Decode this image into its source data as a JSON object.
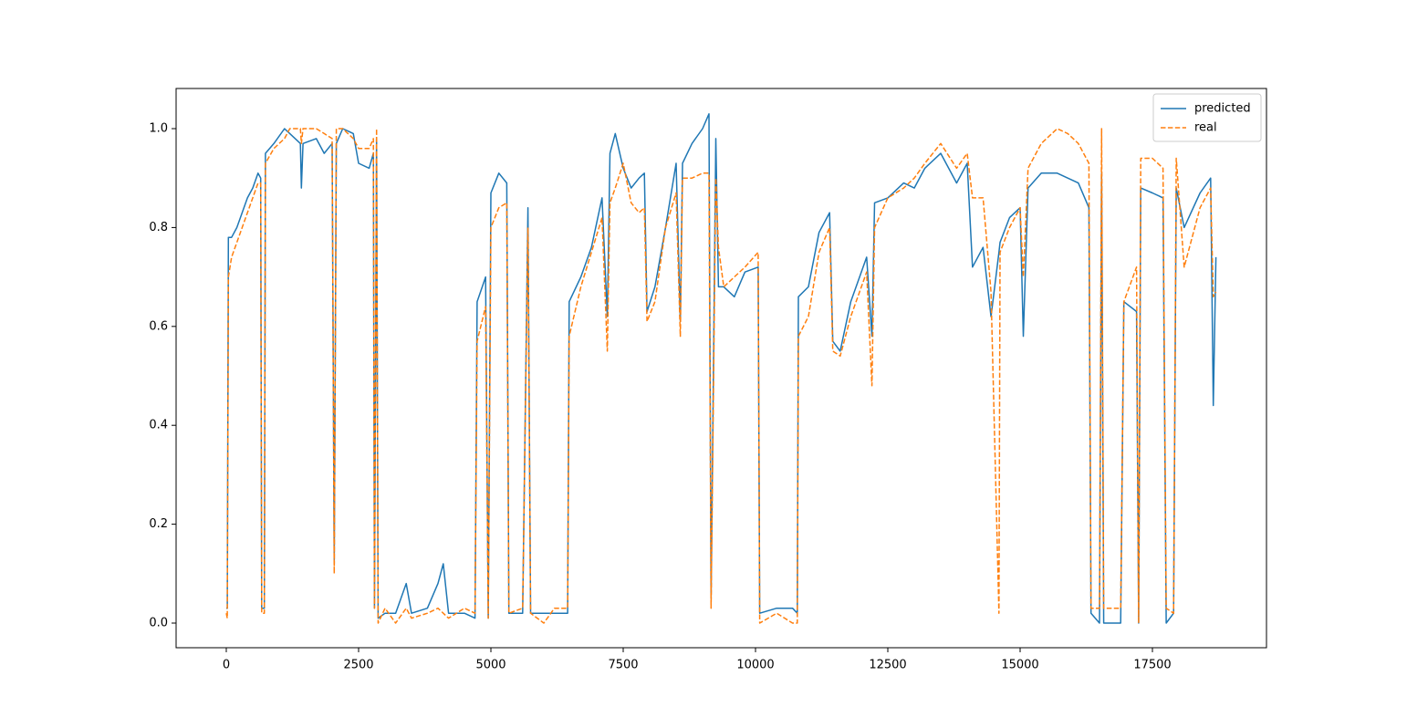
{
  "chart_data": {
    "type": "line",
    "x": [
      0,
      20,
      40,
      100,
      200,
      300,
      400,
      500,
      600,
      650,
      670,
      720,
      740,
      900,
      1100,
      1200,
      1400,
      1420,
      1450,
      1700,
      1850,
      2000,
      2040,
      2080,
      2200,
      2400,
      2500,
      2700,
      2780,
      2800,
      2840,
      2870,
      3000,
      3200,
      3400,
      3500,
      3800,
      4000,
      4100,
      4200,
      4500,
      4700,
      4740,
      4900,
      4950,
      5000,
      5150,
      5300,
      5340,
      5600,
      5700,
      5750,
      6000,
      6200,
      6450,
      6480,
      6700,
      6900,
      7100,
      7200,
      7250,
      7350,
      7500,
      7650,
      7800,
      7900,
      7950,
      8100,
      8300,
      8500,
      8580,
      8620,
      8800,
      9000,
      9120,
      9160,
      9250,
      9300,
      9400,
      9600,
      9800,
      10050,
      10080,
      10400,
      10700,
      10790,
      10810,
      11000,
      11200,
      11400,
      11460,
      11600,
      11800,
      12100,
      12200,
      12250,
      12500,
      12800,
      13000,
      13200,
      13500,
      13800,
      14000,
      14100,
      14300,
      14450,
      14600,
      14620,
      14800,
      15000,
      15060,
      15150,
      15400,
      15700,
      15900,
      16100,
      16300,
      16340,
      16500,
      16540,
      16580,
      16900,
      16960,
      17200,
      17240,
      17280,
      17500,
      17700,
      17760,
      17900,
      17950,
      18100,
      18400,
      18600,
      18650,
      18700
    ],
    "series": [
      {
        "name": "predicted",
        "color": "#1f77b4",
        "dashed": false,
        "values": [
          0.03,
          0.03,
          0.78,
          0.78,
          0.8,
          0.83,
          0.86,
          0.88,
          0.91,
          0.9,
          0.03,
          0.03,
          0.95,
          0.97,
          1.0,
          0.99,
          0.97,
          0.88,
          0.97,
          0.98,
          0.95,
          0.97,
          0.12,
          0.97,
          1.0,
          0.99,
          0.93,
          0.92,
          0.95,
          0.03,
          0.98,
          0.01,
          0.02,
          0.02,
          0.08,
          0.02,
          0.03,
          0.08,
          0.12,
          0.02,
          0.02,
          0.01,
          0.65,
          0.7,
          0.01,
          0.87,
          0.91,
          0.89,
          0.02,
          0.02,
          0.84,
          0.02,
          0.02,
          0.02,
          0.02,
          0.65,
          0.7,
          0.76,
          0.86,
          0.62,
          0.95,
          0.99,
          0.92,
          0.88,
          0.9,
          0.91,
          0.63,
          0.68,
          0.8,
          0.93,
          0.61,
          0.93,
          0.97,
          1.0,
          1.03,
          0.05,
          0.98,
          0.68,
          0.68,
          0.66,
          0.71,
          0.72,
          0.02,
          0.03,
          0.03,
          0.02,
          0.66,
          0.68,
          0.79,
          0.83,
          0.57,
          0.55,
          0.65,
          0.74,
          0.58,
          0.85,
          0.86,
          0.89,
          0.88,
          0.92,
          0.95,
          0.89,
          0.93,
          0.72,
          0.76,
          0.62,
          0.75,
          0.77,
          0.82,
          0.84,
          0.58,
          0.88,
          0.91,
          0.91,
          0.9,
          0.89,
          0.84,
          0.02,
          0.0,
          0.91,
          0.0,
          0.0,
          0.65,
          0.63,
          0.0,
          0.88,
          0.87,
          0.86,
          0.0,
          0.02,
          0.88,
          0.8,
          0.87,
          0.9,
          0.44,
          0.74
        ]
      },
      {
        "name": "real",
        "color": "#ff7f0e",
        "dashed": true,
        "values": [
          0.02,
          0.01,
          0.7,
          0.74,
          0.77,
          0.8,
          0.83,
          0.86,
          0.89,
          0.89,
          0.02,
          0.02,
          0.93,
          0.96,
          0.98,
          1.0,
          1.0,
          0.97,
          1.0,
          1.0,
          0.99,
          0.98,
          0.1,
          1.0,
          1.0,
          0.98,
          0.96,
          0.96,
          0.98,
          0.03,
          1.0,
          0.0,
          0.03,
          0.0,
          0.03,
          0.01,
          0.02,
          0.03,
          0.02,
          0.01,
          0.03,
          0.02,
          0.57,
          0.64,
          0.01,
          0.8,
          0.84,
          0.85,
          0.02,
          0.03,
          0.8,
          0.02,
          0.0,
          0.03,
          0.03,
          0.58,
          0.68,
          0.75,
          0.82,
          0.55,
          0.85,
          0.88,
          0.93,
          0.85,
          0.83,
          0.84,
          0.61,
          0.65,
          0.8,
          0.87,
          0.58,
          0.9,
          0.9,
          0.91,
          0.91,
          0.03,
          0.9,
          0.76,
          0.68,
          0.7,
          0.72,
          0.75,
          0.0,
          0.02,
          0.0,
          0.0,
          0.58,
          0.62,
          0.75,
          0.8,
          0.55,
          0.54,
          0.62,
          0.71,
          0.48,
          0.8,
          0.86,
          0.88,
          0.9,
          0.93,
          0.97,
          0.92,
          0.95,
          0.86,
          0.86,
          0.67,
          0.02,
          0.75,
          0.8,
          0.84,
          0.7,
          0.92,
          0.97,
          1.0,
          0.99,
          0.97,
          0.93,
          0.03,
          0.03,
          1.0,
          0.03,
          0.03,
          0.65,
          0.72,
          0.0,
          0.94,
          0.94,
          0.92,
          0.03,
          0.02,
          0.94,
          0.72,
          0.84,
          0.88,
          0.66,
          0.67
        ]
      }
    ],
    "xlim": [
      -948,
      19655
    ],
    "ylim": [
      -0.0498,
      1.0812
    ],
    "xticks": [
      0,
      2500,
      5000,
      7500,
      10000,
      12500,
      15000,
      17500
    ],
    "yticks": [
      {
        "value": 0,
        "label": "0.0"
      },
      0.2,
      0.4,
      0.6,
      0.8,
      {
        "value": 1,
        "label": "1.0"
      }
    ],
    "legend": "upper right"
  }
}
